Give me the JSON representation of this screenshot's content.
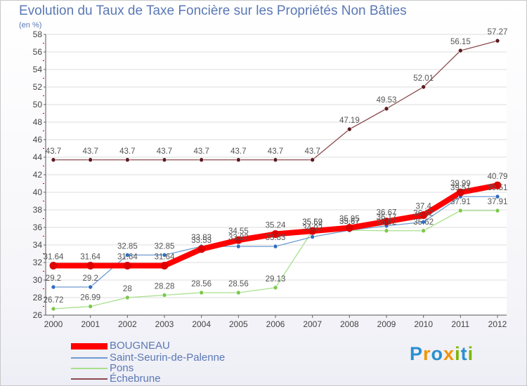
{
  "header": {
    "title": "Evolution du Taux de Taxe Foncière sur les Propriétés Non Bâties",
    "unit": "(en %)"
  },
  "logo": {
    "text": "Proxiti",
    "letters": [
      {
        "ch": "P",
        "color": "#2a8fd0"
      },
      {
        "ch": "r",
        "color": "#f29400"
      },
      {
        "ch": "o",
        "color": "#2a8fd0"
      },
      {
        "ch": "x",
        "color": "#f29400"
      },
      {
        "ch": "i",
        "color": "#7ab800"
      },
      {
        "ch": "t",
        "color": "#2a8fd0"
      },
      {
        "ch": "i",
        "color": "#7ab800"
      }
    ]
  },
  "chart_data": {
    "type": "line",
    "title": "Evolution du Taux de Taxe Foncière sur les Propriétés Non Bâties",
    "ylabel": "(en %)",
    "xlabel": "",
    "ylim": [
      26,
      58
    ],
    "yticks": [
      26,
      28,
      30,
      32,
      34,
      36,
      38,
      40,
      42,
      44,
      46,
      48,
      50,
      52,
      54,
      56,
      58
    ],
    "grid": "horizontal",
    "legend_position": "bottom-left",
    "categories": [
      "2000",
      "2001",
      "2002",
      "2003",
      "2004",
      "2005",
      "2006",
      "2007",
      "2008",
      "2009",
      "2010",
      "2011",
      "2012"
    ],
    "series": [
      {
        "name": "BOUGNEAU",
        "color": "#ff0000",
        "marker": "#dd0000",
        "width": 8,
        "values": [
          31.64,
          31.64,
          31.64,
          31.64,
          33.53,
          34.55,
          35.24,
          35.59,
          35.95,
          36.67,
          37.4,
          39.99,
          40.79
        ],
        "labels": [
          "31.64",
          "31.64",
          "31.64",
          "31.64",
          "33.53",
          "34.55",
          "35.24",
          "35.59",
          "35.95",
          "36.67",
          "37.4",
          "39.99",
          "40.79"
        ]
      },
      {
        "name": "Saint-Seurin-de-Palenne",
        "color": "#6e9bd0",
        "marker": "#2e6fc0",
        "width": 1.3,
        "values": [
          29.2,
          29.2,
          32.85,
          32.85,
          33.83,
          33.83,
          33.83,
          34.92,
          35.67,
          36.17,
          36.62,
          39.51,
          39.51
        ],
        "labels": [
          "29.2",
          "29.2",
          "32.85",
          "32.85",
          "33.83",
          "33.83",
          "33.83",
          "34.92",
          "35.67",
          "36.17",
          "36.62",
          "39.51",
          "39.51"
        ]
      },
      {
        "name": "Pons",
        "color": "#a8e08c",
        "marker": "#7cc84c",
        "width": 1.3,
        "values": [
          26.72,
          26.99,
          28,
          28.28,
          28.56,
          28.56,
          29.13,
          35.62,
          35.67,
          35.62,
          35.62,
          37.91,
          37.91
        ],
        "labels": [
          "26.72",
          "26.99",
          "28",
          "28.28",
          "28.56",
          "28.56",
          "29.13",
          "35.62",
          "35.67",
          "35.62",
          "35.62",
          "37.91",
          "37.91"
        ]
      },
      {
        "name": "Échebrune",
        "color": "#8b4a4e",
        "marker": "#5c1a1e",
        "width": 1.3,
        "values": [
          43.7,
          43.7,
          43.7,
          43.7,
          43.7,
          43.7,
          43.7,
          43.7,
          47.19,
          49.53,
          52.01,
          56.15,
          57.27
        ],
        "labels": [
          "43.7",
          "43.7",
          "43.7",
          "43.7",
          "43.7",
          "43.7",
          "43.7",
          "43.7",
          "47.19",
          "49.53",
          "52.01",
          "56.15",
          "57.27"
        ]
      }
    ]
  }
}
